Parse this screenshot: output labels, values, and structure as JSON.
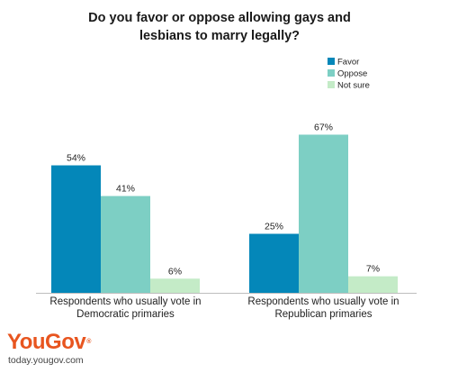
{
  "chart_data": {
    "type": "bar",
    "title_lines": [
      "Do you favor or oppose allowing gays and",
      "lesbians to marry legally?"
    ],
    "categories": [
      [
        "Respondents who usually vote in",
        "Democratic primaries"
      ],
      [
        "Respondents who usually vote in",
        "Republican primaries"
      ]
    ],
    "series": [
      {
        "name": "Favor",
        "color": "#0487b9",
        "values": [
          54,
          25
        ],
        "labels": [
          "54%",
          "25%"
        ]
      },
      {
        "name": "Oppose",
        "color": "#7dcfc4",
        "values": [
          41,
          67
        ],
        "labels": [
          "41%",
          "67%"
        ]
      },
      {
        "name": "Not sure",
        "color": "#c4ebc7",
        "values": [
          6,
          7
        ],
        "labels": [
          "6%",
          "7%"
        ]
      }
    ],
    "ylim": [
      0,
      100
    ],
    "unit": "%",
    "grid": false,
    "legend_position": "top-right"
  },
  "brand": {
    "logo": "YouGov",
    "logo_mark": "®",
    "site": "today.yougov.com",
    "color": "#e8551f"
  }
}
